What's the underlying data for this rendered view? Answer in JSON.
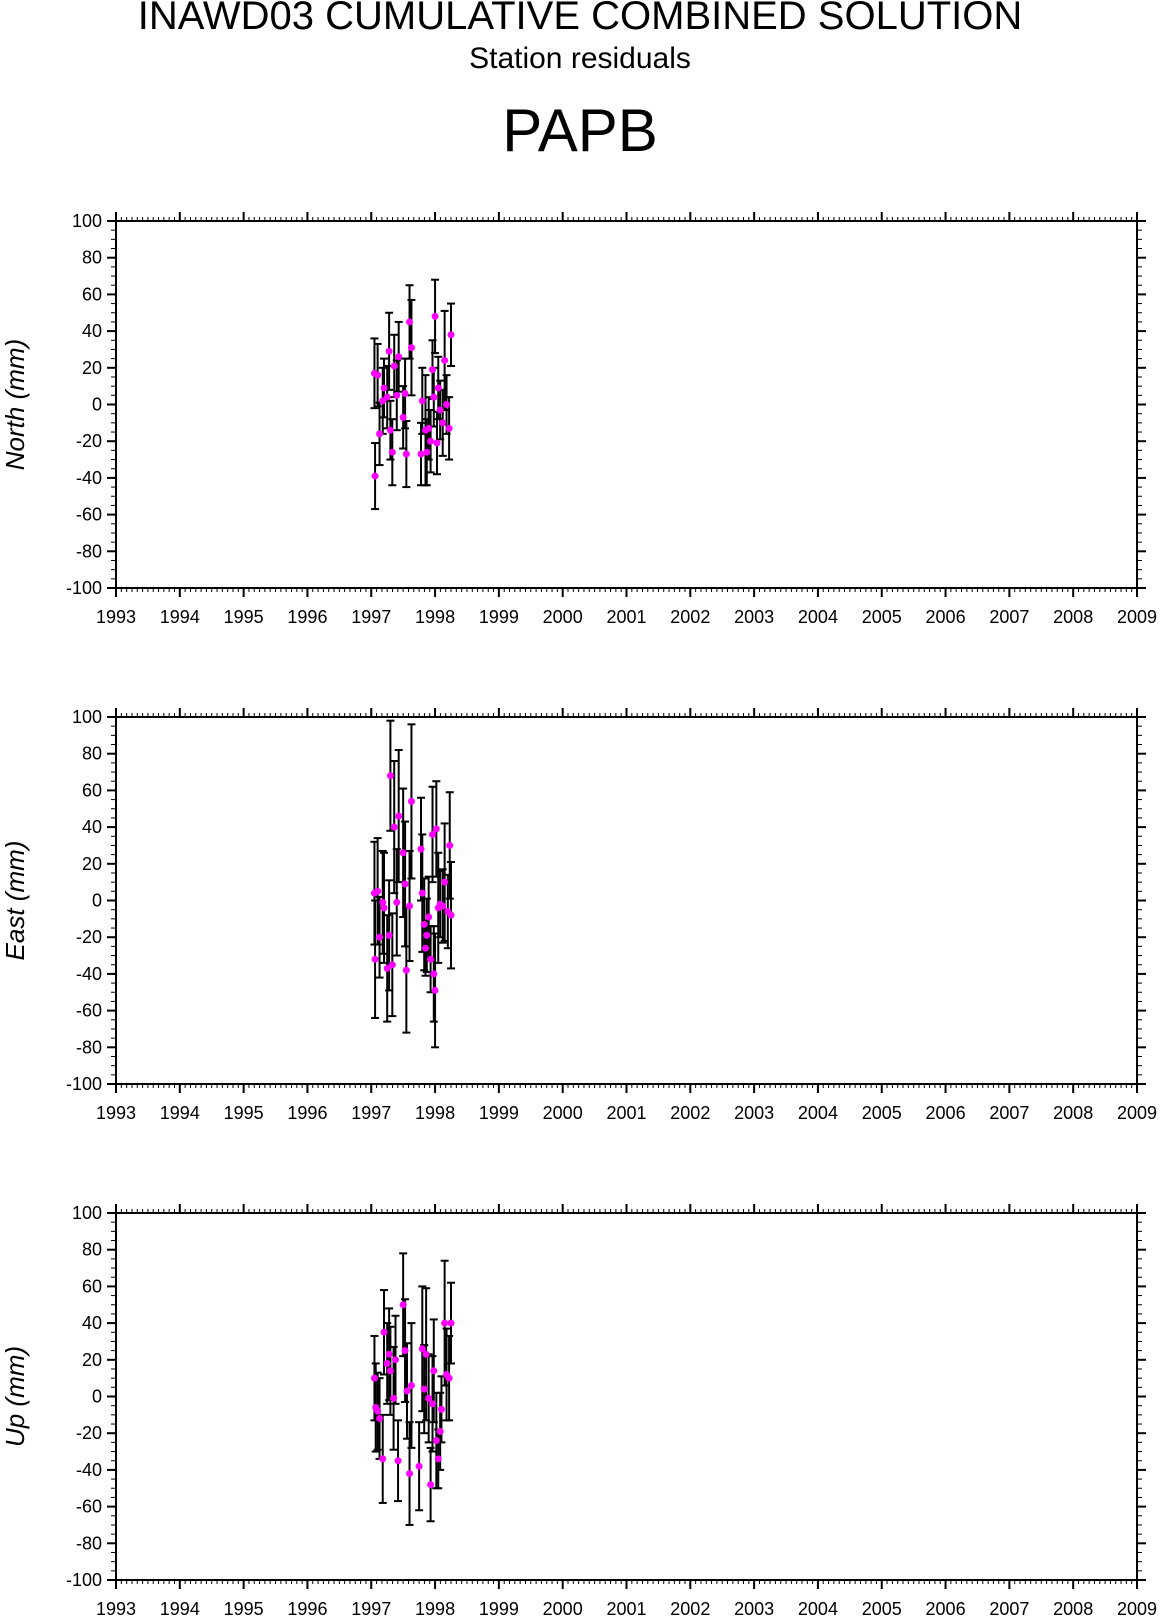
{
  "header": {
    "title": "INAWD03 CUMULATIVE COMBINED SOLUTION",
    "subtitle": "Station residuals",
    "station": "PAPB"
  },
  "colors": {
    "point": "#ff00ff",
    "errorbar": "#000000",
    "axis": "#000000"
  },
  "chart_data": [
    {
      "type": "scatter",
      "ylabel": "North (mm)",
      "xlim": [
        1993,
        2009
      ],
      "ylim": [
        -100,
        100
      ],
      "xticks": [
        "1993",
        "1994",
        "1995",
        "1996",
        "1997",
        "1998",
        "1999",
        "2000",
        "2001",
        "2002",
        "2003",
        "2004",
        "2005",
        "2006",
        "2007",
        "2008",
        "2009"
      ],
      "yticks": [
        "100",
        "80",
        "60",
        "40",
        "20",
        "0",
        "-20",
        "-40",
        "-60",
        "-80",
        "-100"
      ],
      "points": [
        {
          "x": 1997.05,
          "y": 17,
          "err": 19
        },
        {
          "x": 1997.06,
          "y": -39,
          "err": 18
        },
        {
          "x": 1997.1,
          "y": 16,
          "err": 17
        },
        {
          "x": 1997.13,
          "y": -16,
          "err": 17
        },
        {
          "x": 1997.18,
          "y": 2,
          "err": 18
        },
        {
          "x": 1997.2,
          "y": 9,
          "err": 16
        },
        {
          "x": 1997.25,
          "y": 4,
          "err": 17
        },
        {
          "x": 1997.28,
          "y": 29,
          "err": 21
        },
        {
          "x": 1997.3,
          "y": -14,
          "err": 16
        },
        {
          "x": 1997.33,
          "y": -26,
          "err": 18
        },
        {
          "x": 1997.36,
          "y": 21,
          "err": 17
        },
        {
          "x": 1997.4,
          "y": 5,
          "err": 19
        },
        {
          "x": 1997.43,
          "y": 26,
          "err": 19
        },
        {
          "x": 1997.5,
          "y": -7,
          "err": 17
        },
        {
          "x": 1997.53,
          "y": 6,
          "err": 19
        },
        {
          "x": 1997.55,
          "y": -27,
          "err": 18
        },
        {
          "x": 1997.6,
          "y": 45,
          "err": 20
        },
        {
          "x": 1997.63,
          "y": 31,
          "err": 26
        },
        {
          "x": 1997.78,
          "y": -27,
          "err": 17
        },
        {
          "x": 1997.8,
          "y": 2,
          "err": 18
        },
        {
          "x": 1997.85,
          "y": -14,
          "err": 30
        },
        {
          "x": 1997.87,
          "y": -26,
          "err": 18
        },
        {
          "x": 1997.9,
          "y": -13,
          "err": 17
        },
        {
          "x": 1997.93,
          "y": -20,
          "err": 17
        },
        {
          "x": 1997.96,
          "y": 19,
          "err": 16
        },
        {
          "x": 1997.98,
          "y": 4,
          "err": 16
        },
        {
          "x": 1998.0,
          "y": 48,
          "err": 20
        },
        {
          "x": 1998.03,
          "y": -21,
          "err": 17
        },
        {
          "x": 1998.05,
          "y": 9,
          "err": 17
        },
        {
          "x": 1998.08,
          "y": -3,
          "err": 16
        },
        {
          "x": 1998.12,
          "y": -10,
          "err": 18
        },
        {
          "x": 1998.15,
          "y": 24,
          "err": 27
        },
        {
          "x": 1998.18,
          "y": 0,
          "err": 16
        },
        {
          "x": 1998.22,
          "y": -13,
          "err": 17
        },
        {
          "x": 1998.25,
          "y": 38,
          "err": 17
        }
      ]
    },
    {
      "type": "scatter",
      "ylabel": "East (mm)",
      "xlim": [
        1993,
        2009
      ],
      "ylim": [
        -100,
        100
      ],
      "xticks": [
        "1993",
        "1994",
        "1995",
        "1996",
        "1997",
        "1998",
        "1999",
        "2000",
        "2001",
        "2002",
        "2003",
        "2004",
        "2005",
        "2006",
        "2007",
        "2008",
        "2009"
      ],
      "yticks": [
        "100",
        "80",
        "60",
        "40",
        "20",
        "0",
        "-20",
        "-40",
        "-60",
        "-80",
        "-100"
      ],
      "points": [
        {
          "x": 1997.05,
          "y": 4,
          "err": 28
        },
        {
          "x": 1997.06,
          "y": -32,
          "err": 32
        },
        {
          "x": 1997.1,
          "y": 5,
          "err": 29
        },
        {
          "x": 1997.13,
          "y": -20,
          "err": 22
        },
        {
          "x": 1997.18,
          "y": -1,
          "err": 28
        },
        {
          "x": 1997.2,
          "y": -4,
          "err": 30
        },
        {
          "x": 1997.25,
          "y": -37,
          "err": 29
        },
        {
          "x": 1997.28,
          "y": -19,
          "err": 30
        },
        {
          "x": 1997.3,
          "y": 68,
          "err": 30
        },
        {
          "x": 1997.33,
          "y": -35,
          "err": 28
        },
        {
          "x": 1997.36,
          "y": 40,
          "err": 36
        },
        {
          "x": 1997.4,
          "y": -1,
          "err": 29
        },
        {
          "x": 1997.43,
          "y": 46,
          "err": 36
        },
        {
          "x": 1997.5,
          "y": 26,
          "err": 35
        },
        {
          "x": 1997.53,
          "y": 9,
          "err": 34
        },
        {
          "x": 1997.55,
          "y": -38,
          "err": 34
        },
        {
          "x": 1997.6,
          "y": -3,
          "err": 30
        },
        {
          "x": 1997.63,
          "y": 54,
          "err": 42
        },
        {
          "x": 1997.78,
          "y": 28,
          "err": 28
        },
        {
          "x": 1997.8,
          "y": 4,
          "err": 32
        },
        {
          "x": 1997.83,
          "y": -13,
          "err": 25
        },
        {
          "x": 1997.85,
          "y": -26,
          "err": 15
        },
        {
          "x": 1997.87,
          "y": -19,
          "err": 20
        },
        {
          "x": 1997.9,
          "y": -9,
          "err": 22
        },
        {
          "x": 1997.93,
          "y": -32,
          "err": 18
        },
        {
          "x": 1997.96,
          "y": 36,
          "err": 26
        },
        {
          "x": 1997.98,
          "y": -40,
          "err": 26
        },
        {
          "x": 1998.0,
          "y": -49,
          "err": 31
        },
        {
          "x": 1998.02,
          "y": 39,
          "err": 26
        },
        {
          "x": 1998.05,
          "y": -4,
          "err": 30
        },
        {
          "x": 1998.08,
          "y": -2,
          "err": 18
        },
        {
          "x": 1998.12,
          "y": -3,
          "err": 20
        },
        {
          "x": 1998.15,
          "y": 10,
          "err": 32
        },
        {
          "x": 1998.2,
          "y": -6,
          "err": 20
        },
        {
          "x": 1998.23,
          "y": 30,
          "err": 29
        },
        {
          "x": 1998.25,
          "y": -8,
          "err": 29
        }
      ]
    },
    {
      "type": "scatter",
      "ylabel": "Up (mm)",
      "xlim": [
        1993,
        2009
      ],
      "ylim": [
        -100,
        100
      ],
      "xticks": [
        "1993",
        "1994",
        "1995",
        "1996",
        "1997",
        "1998",
        "1999",
        "2000",
        "2001",
        "2002",
        "2003",
        "2004",
        "2005",
        "2006",
        "2007",
        "2008",
        "2009"
      ],
      "yticks": [
        "100",
        "80",
        "60",
        "40",
        "20",
        "0",
        "-20",
        "-40",
        "-60",
        "-80",
        "-100"
      ],
      "points": [
        {
          "x": 1997.05,
          "y": 10,
          "err": 23
        },
        {
          "x": 1997.07,
          "y": -6,
          "err": 24
        },
        {
          "x": 1997.1,
          "y": -8,
          "err": 21
        },
        {
          "x": 1997.13,
          "y": -12,
          "err": 22
        },
        {
          "x": 1997.18,
          "y": -34,
          "err": 24
        },
        {
          "x": 1997.2,
          "y": 35,
          "err": 23
        },
        {
          "x": 1997.25,
          "y": 18,
          "err": 22
        },
        {
          "x": 1997.28,
          "y": 23,
          "err": 25
        },
        {
          "x": 1997.3,
          "y": 14,
          "err": 24
        },
        {
          "x": 1997.35,
          "y": -1,
          "err": 28
        },
        {
          "x": 1997.38,
          "y": 20,
          "err": 24
        },
        {
          "x": 1997.42,
          "y": -35,
          "err": 22
        },
        {
          "x": 1997.5,
          "y": 50,
          "err": 28
        },
        {
          "x": 1997.53,
          "y": 25,
          "err": 28
        },
        {
          "x": 1997.56,
          "y": 3,
          "err": 26
        },
        {
          "x": 1997.6,
          "y": -42,
          "err": 28
        },
        {
          "x": 1997.63,
          "y": 6,
          "err": 34
        },
        {
          "x": 1997.75,
          "y": -38,
          "err": 24
        },
        {
          "x": 1997.8,
          "y": 26,
          "err": 34
        },
        {
          "x": 1997.83,
          "y": 4,
          "err": 24
        },
        {
          "x": 1997.86,
          "y": 23,
          "err": 36
        },
        {
          "x": 1997.9,
          "y": -1,
          "err": 24
        },
        {
          "x": 1997.93,
          "y": -48,
          "err": 20
        },
        {
          "x": 1997.96,
          "y": -4,
          "err": 26
        },
        {
          "x": 1997.98,
          "y": 14,
          "err": 28
        },
        {
          "x": 1998.02,
          "y": -24,
          "err": 26
        },
        {
          "x": 1998.05,
          "y": -34,
          "err": 16
        },
        {
          "x": 1998.08,
          "y": -19,
          "err": 21
        },
        {
          "x": 1998.1,
          "y": -7,
          "err": 18
        },
        {
          "x": 1998.15,
          "y": 40,
          "err": 34
        },
        {
          "x": 1998.18,
          "y": 12,
          "err": 25
        },
        {
          "x": 1998.22,
          "y": 10,
          "err": 23
        },
        {
          "x": 1998.25,
          "y": 40,
          "err": 22
        }
      ]
    }
  ]
}
